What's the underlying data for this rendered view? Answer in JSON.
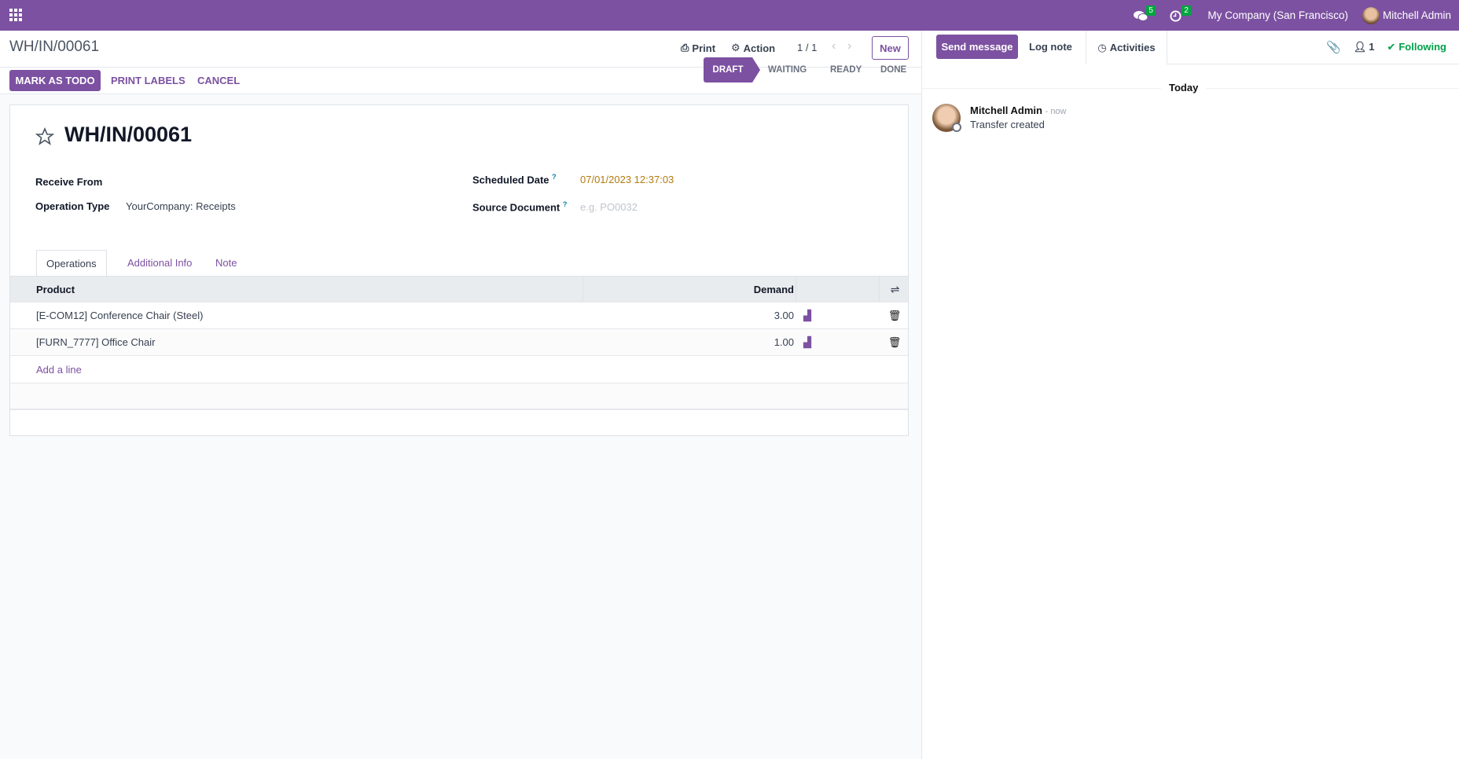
{
  "navbar": {
    "apps_icon": "grid-icon",
    "messages_count": "5",
    "activities_count": "2",
    "company": "My Company (San Francisco)",
    "user": "Mitchell Admin",
    "color": "#7c51a1"
  },
  "control_panel": {
    "breadcrumb": "WH/IN/00061",
    "print": "Print",
    "action": "Action",
    "pager": "1 / 1",
    "new": "New"
  },
  "status_buttons": {
    "mark_todo": "MARK AS TODO",
    "print_labels": "PRINT LABELS",
    "cancel": "CANCEL"
  },
  "stages": [
    {
      "label": "DRAFT",
      "active": true
    },
    {
      "label": "WAITING"
    },
    {
      "label": "READY"
    },
    {
      "label": "DONE"
    }
  ],
  "form": {
    "title": "WH/IN/00061",
    "fields": {
      "receive_from": {
        "label": "Receive From",
        "value": ""
      },
      "operation_type": {
        "label": "Operation Type",
        "value": "YourCompany: Receipts"
      },
      "scheduled_date": {
        "label": "Scheduled Date",
        "help": "?",
        "value": "07/01/2023 12:37:03"
      },
      "source_document": {
        "label": "Source Document",
        "help": "?",
        "placeholder": "e.g. PO0032"
      }
    },
    "tabs": [
      {
        "label": "Operations",
        "active": true
      },
      {
        "label": "Additional Info"
      },
      {
        "label": "Note"
      }
    ],
    "table": {
      "columns": [
        "Product",
        "Demand"
      ],
      "rows": [
        {
          "product": "[E-COM12] Conference Chair (Steel)",
          "demand": "3.00"
        },
        {
          "product": "[FURN_7777] Office Chair",
          "demand": "1.00"
        }
      ],
      "add_line": "Add a line"
    }
  },
  "chatter": {
    "send_message": "Send message",
    "log_note": "Log note",
    "activities": "Activities",
    "followers": "1",
    "following": "Following",
    "date_separator": "Today",
    "messages": [
      {
        "author": "Mitchell Admin",
        "time": "- now",
        "body": "Transfer created"
      }
    ]
  }
}
